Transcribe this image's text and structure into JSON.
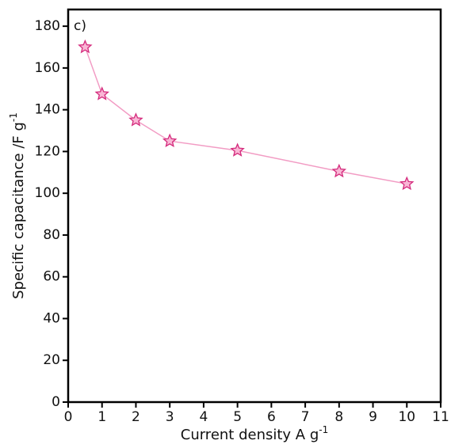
{
  "chart_data": {
    "type": "line",
    "annotation": "c)",
    "x_label": "Current density A g",
    "x_label_superscript": "-1",
    "y_label": "Specific capacitance /F g",
    "y_label_superscript": "-1",
    "x": [
      0.5,
      1,
      2,
      3,
      5,
      8,
      10
    ],
    "series": [
      {
        "color": "#f29cc4",
        "marker_fill": "#f9b6d5",
        "marker_stroke": "#d42a7c",
        "values": [
          170,
          147.5,
          135,
          125,
          120.5,
          110.5,
          104.5
        ]
      }
    ],
    "xlim": [
      0,
      11
    ],
    "xticks": [
      0,
      1,
      2,
      3,
      4,
      5,
      6,
      7,
      8,
      9,
      10,
      11
    ],
    "ylim": [
      0,
      188
    ],
    "yticks": [
      0,
      20,
      40,
      60,
      80,
      100,
      120,
      140,
      160,
      180
    ],
    "grid": false
  }
}
